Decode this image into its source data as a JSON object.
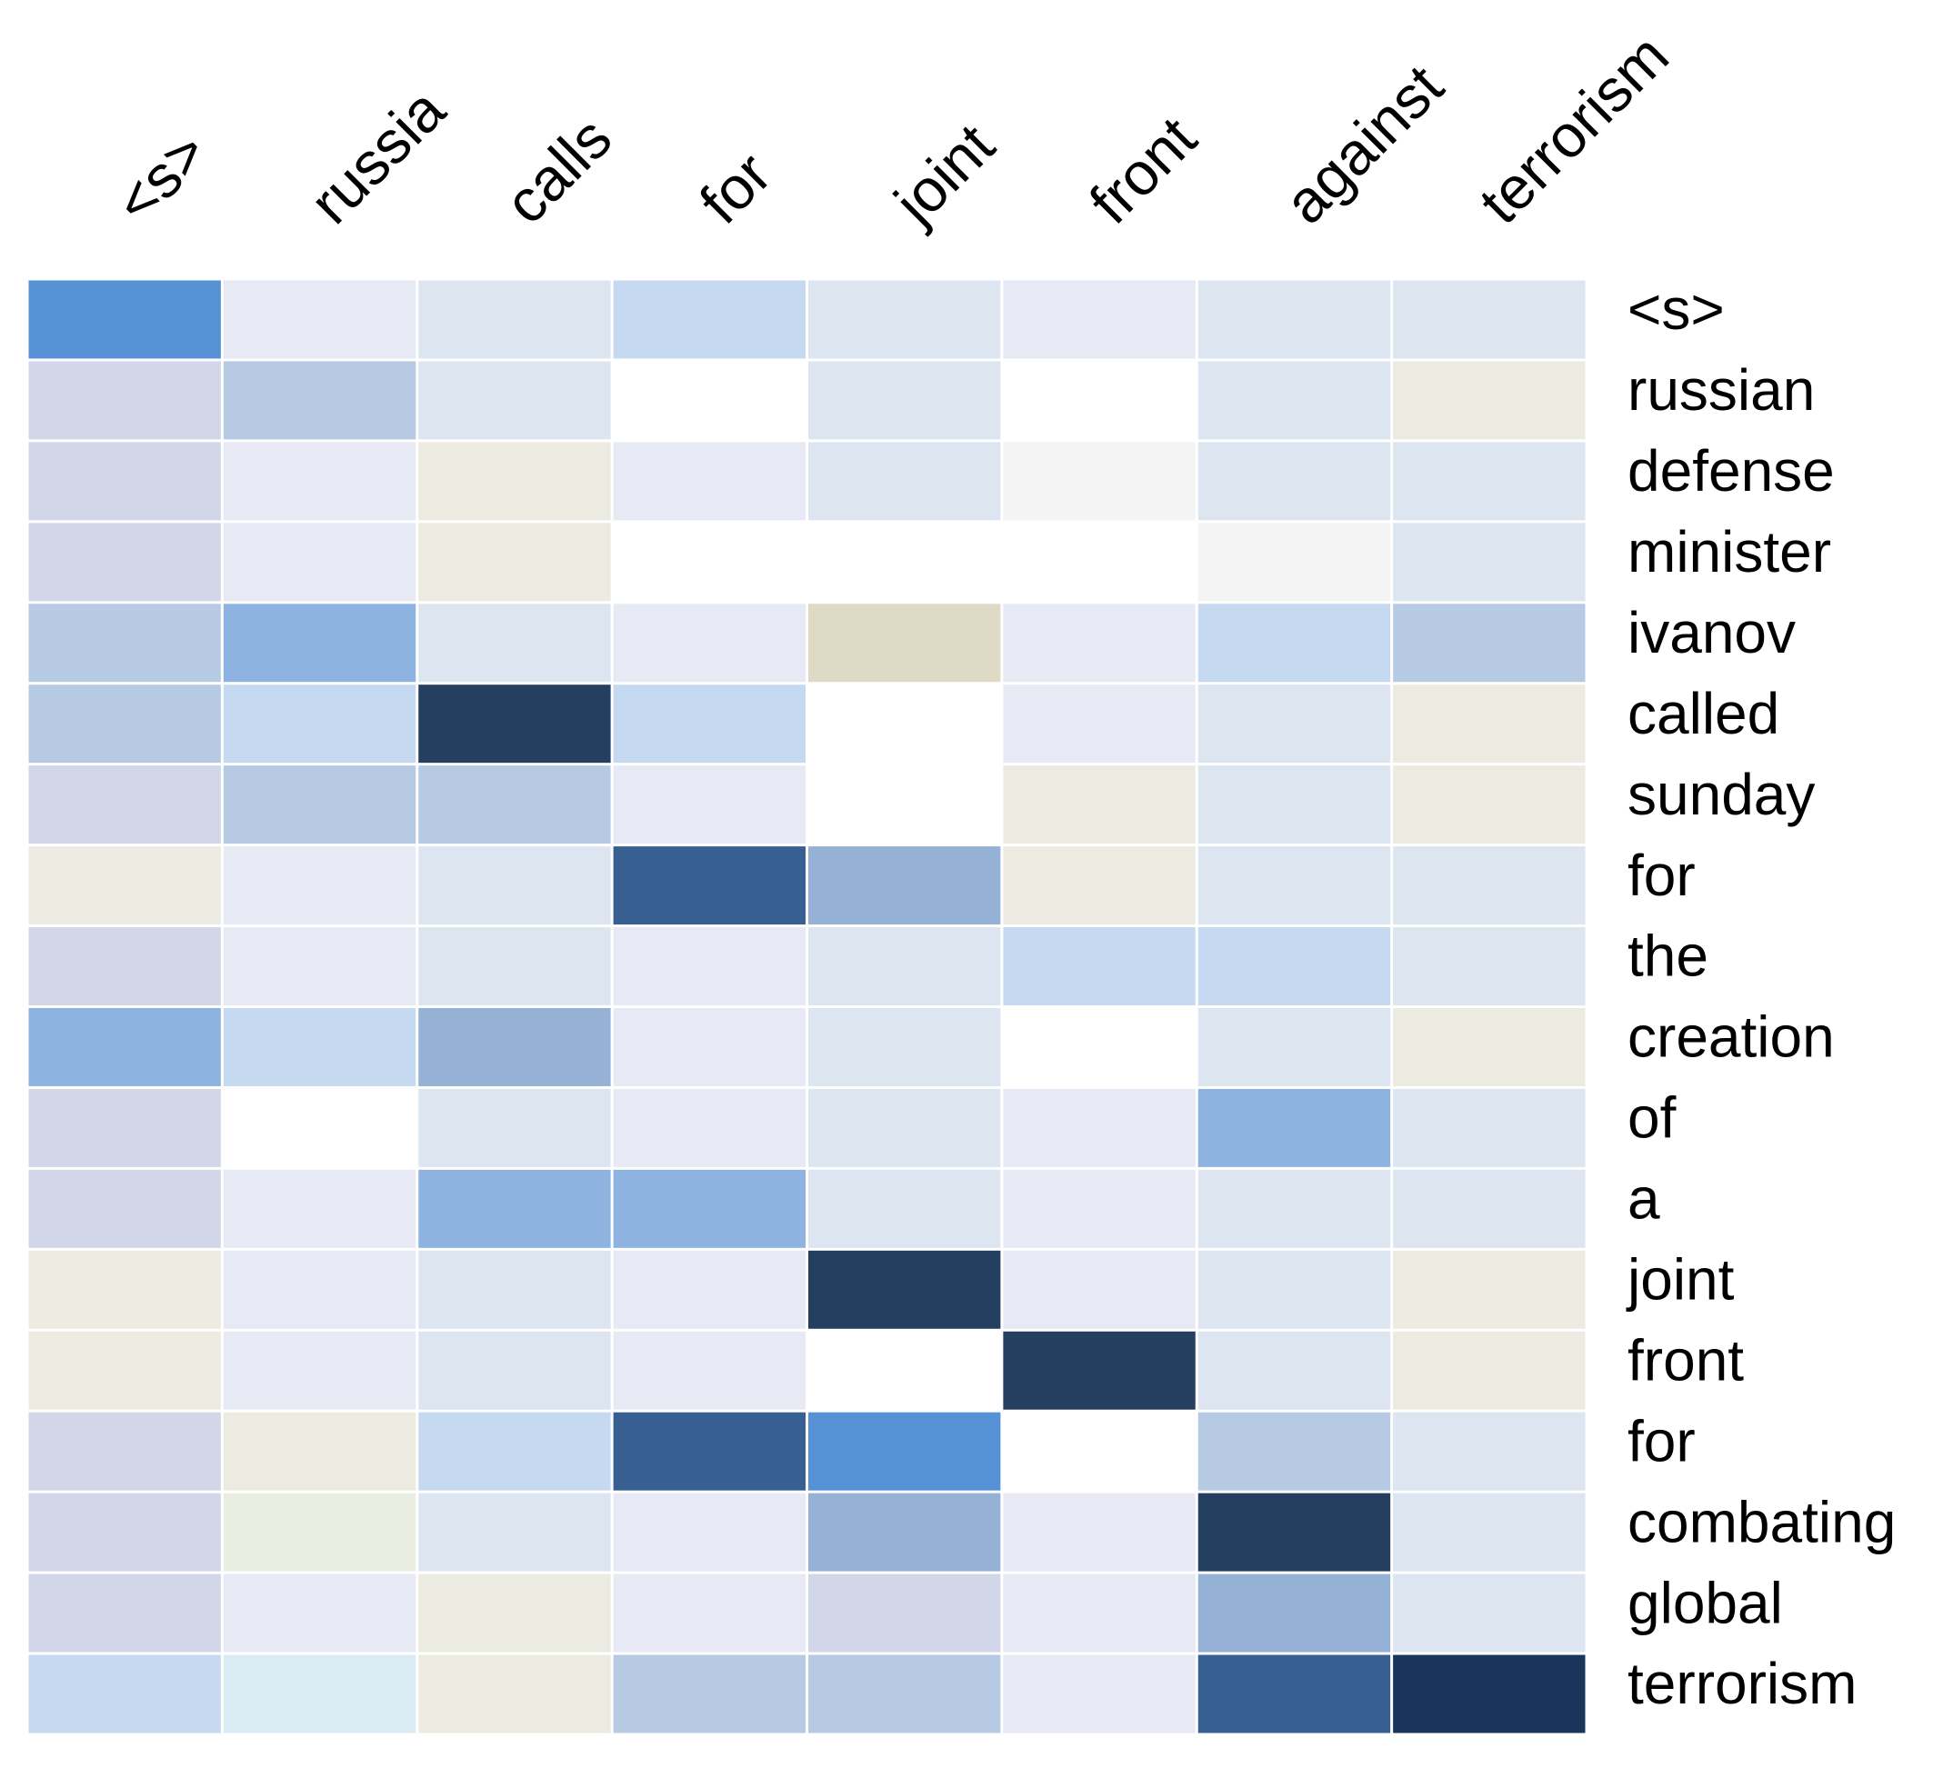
{
  "chart_data": {
    "type": "heatmap",
    "title": "",
    "xlabel": "",
    "ylabel": "",
    "x_labels": [
      "<s>",
      "russia",
      "calls",
      "for",
      "joint",
      "front",
      "against",
      "terrorism"
    ],
    "y_labels": [
      "<s>",
      "russian",
      "defense",
      "minister",
      "ivanov",
      "called",
      "sunday",
      "for",
      "the",
      "creation",
      "of",
      "a",
      "joint",
      "front",
      "for",
      "combating",
      "global",
      "terrorism"
    ],
    "x_label_position": "top, rotated",
    "y_label_position": "right",
    "value_range": [
      0,
      1
    ],
    "values": [
      [
        0.62,
        0.1,
        0.18,
        0.28,
        0.18,
        0.1,
        0.18,
        0.18
      ],
      [
        0.06,
        0.38,
        0.18,
        0.0,
        0.18,
        0.0,
        0.18,
        0.04
      ],
      [
        0.06,
        0.1,
        0.04,
        0.1,
        0.18,
        0.02,
        0.18,
        0.18
      ],
      [
        0.06,
        0.1,
        0.04,
        0.0,
        0.0,
        0.0,
        0.02,
        0.18
      ],
      [
        0.38,
        0.47,
        0.18,
        0.1,
        0.08,
        0.1,
        0.28,
        0.38
      ],
      [
        0.38,
        0.28,
        0.9,
        0.28,
        0.0,
        0.1,
        0.18,
        0.04
      ],
      [
        0.06,
        0.38,
        0.38,
        0.1,
        0.0,
        0.04,
        0.18,
        0.04
      ],
      [
        0.04,
        0.1,
        0.18,
        0.8,
        0.42,
        0.04,
        0.18,
        0.18
      ],
      [
        0.06,
        0.1,
        0.18,
        0.1,
        0.18,
        0.28,
        0.28,
        0.18
      ],
      [
        0.47,
        0.28,
        0.42,
        0.1,
        0.18,
        0.0,
        0.18,
        0.04
      ],
      [
        0.06,
        0.0,
        0.18,
        0.1,
        0.18,
        0.1,
        0.47,
        0.18
      ],
      [
        0.06,
        0.1,
        0.47,
        0.47,
        0.18,
        0.1,
        0.18,
        0.18
      ],
      [
        0.04,
        0.1,
        0.18,
        0.1,
        0.9,
        0.1,
        0.18,
        0.04
      ],
      [
        0.04,
        0.1,
        0.18,
        0.1,
        0.0,
        0.9,
        0.18,
        0.04
      ],
      [
        0.06,
        0.04,
        0.28,
        0.8,
        0.62,
        0.0,
        0.38,
        0.18
      ],
      [
        0.06,
        0.05,
        0.18,
        0.1,
        0.42,
        0.1,
        0.9,
        0.18
      ],
      [
        0.06,
        0.1,
        0.04,
        0.1,
        0.06,
        0.1,
        0.42,
        0.18
      ],
      [
        0.28,
        0.15,
        0.04,
        0.38,
        0.38,
        0.1,
        0.8,
        0.95
      ]
    ],
    "colors": {
      "0.00": "#ffffff",
      "0.02": "#f4f4f4",
      "0.04": "#ecebe1",
      "0.05": "#eaeee2",
      "0.06": "#d1d7e8",
      "0.08": "#dfdac6",
      "0.10": "#e7eaf4",
      "0.15": "#dbebf3",
      "0.18": "#dce5f0",
      "0.28": "#c5d9f0",
      "0.38": "#b6cbe3",
      "0.42": "#95b2d6",
      "0.47": "#8fb3e0",
      "0.62": "#5690d5",
      "0.80": "#385f91",
      "0.90": "#243f60",
      "0.95": "#19355b"
    }
  }
}
